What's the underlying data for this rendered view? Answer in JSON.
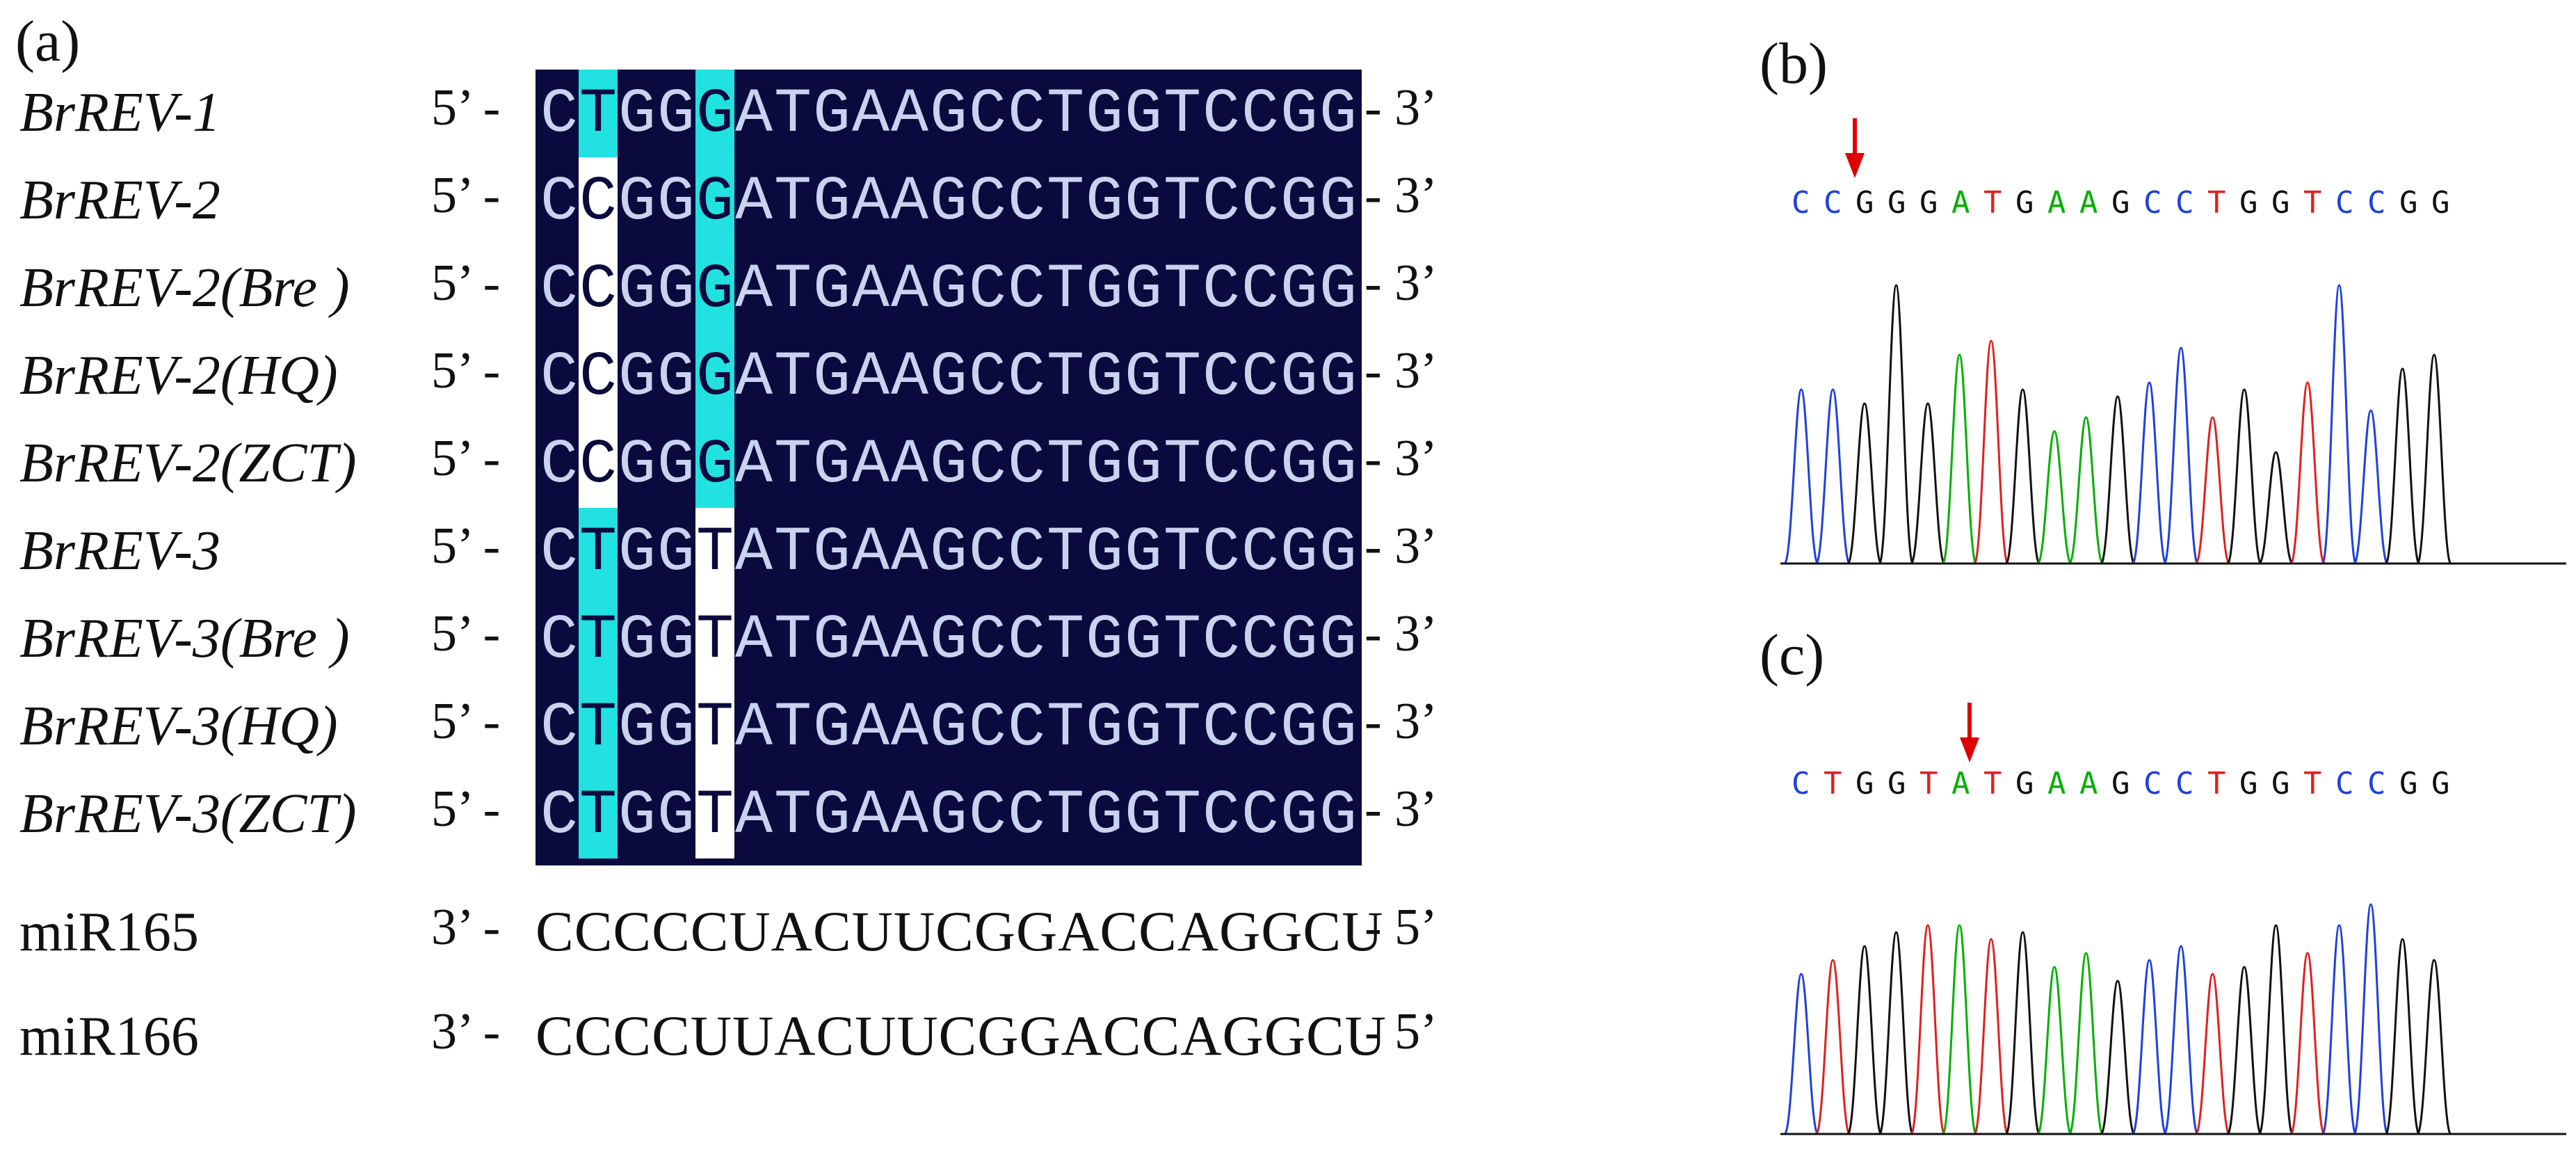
{
  "panel_labels": {
    "a": "(a)",
    "b": "(b)",
    "c": "(c)"
  },
  "alignment": {
    "rows": [
      {
        "name": "BrREV-1",
        "left_end": "5’ -",
        "sequence": "CTGGGATGAAGCCTGGTCCGG",
        "right_end": "- 3’"
      },
      {
        "name": "BrREV-2",
        "left_end": "5’ -",
        "sequence": "CCGGGATGAAGCCTGGTCCGG",
        "right_end": "- 3’"
      },
      {
        "name": "BrREV-2(Bre )",
        "left_end": "5’ -",
        "sequence": "CCGGGATGAAGCCTGGTCCGG",
        "right_end": "- 3’"
      },
      {
        "name": "BrREV-2(HQ)",
        "left_end": "5’ -",
        "sequence": "CCGGGATGAAGCCTGGTCCGG",
        "right_end": "- 3’"
      },
      {
        "name": "BrREV-2(ZCT)",
        "left_end": "5’ -",
        "sequence": "CCGGGATGAAGCCTGGTCCGG",
        "right_end": "- 3’"
      },
      {
        "name": "BrREV-3",
        "left_end": "5’ -",
        "sequence": "CTGGTATGAAGCCTGGTCCGG",
        "right_end": "- 3’"
      },
      {
        "name": "BrREV-3(Bre )",
        "left_end": "5’ -",
        "sequence": "CTGGTATGAAGCCTGGTCCGG",
        "right_end": "- 3’"
      },
      {
        "name": "BrREV-3(HQ)",
        "left_end": "5’ -",
        "sequence": "CTGGTATGAAGCCTGGTCCGG",
        "right_end": "- 3’"
      },
      {
        "name": "BrREV-3(ZCT)",
        "left_end": "5’ -",
        "sequence": "CTGGTATGAAGCCTGGTCCGG",
        "right_end": "- 3’"
      }
    ],
    "mirnas": [
      {
        "name": "miR165",
        "left_end": "3’ -",
        "sequence": "CCCCCUACUUCGGACCAGGCU",
        "right_end": "- 5’"
      },
      {
        "name": "miR166",
        "left_end": "3’ -",
        "sequence": "CCCCUUACUUCGGACCAGGCU",
        "right_end": "- 5’"
      }
    ],
    "colors": {
      "block": "#0a0a3e",
      "letter": "#c9d2ee",
      "highlight": "#21e1e1",
      "gap": "#ffffff"
    }
  },
  "chromatograms": {
    "b": {
      "sequence": "CCGGGATGAAGCCTGGTCCGG",
      "arrow_color": "#e00000"
    },
    "c": {
      "sequence": "CTGGTATGAAGCCTGGTCCGG",
      "arrow_color": "#e00000"
    },
    "base_colors": {
      "A": "#00b000",
      "C": "#1f3fe0",
      "G": "#111111",
      "T": "#e02020"
    }
  }
}
